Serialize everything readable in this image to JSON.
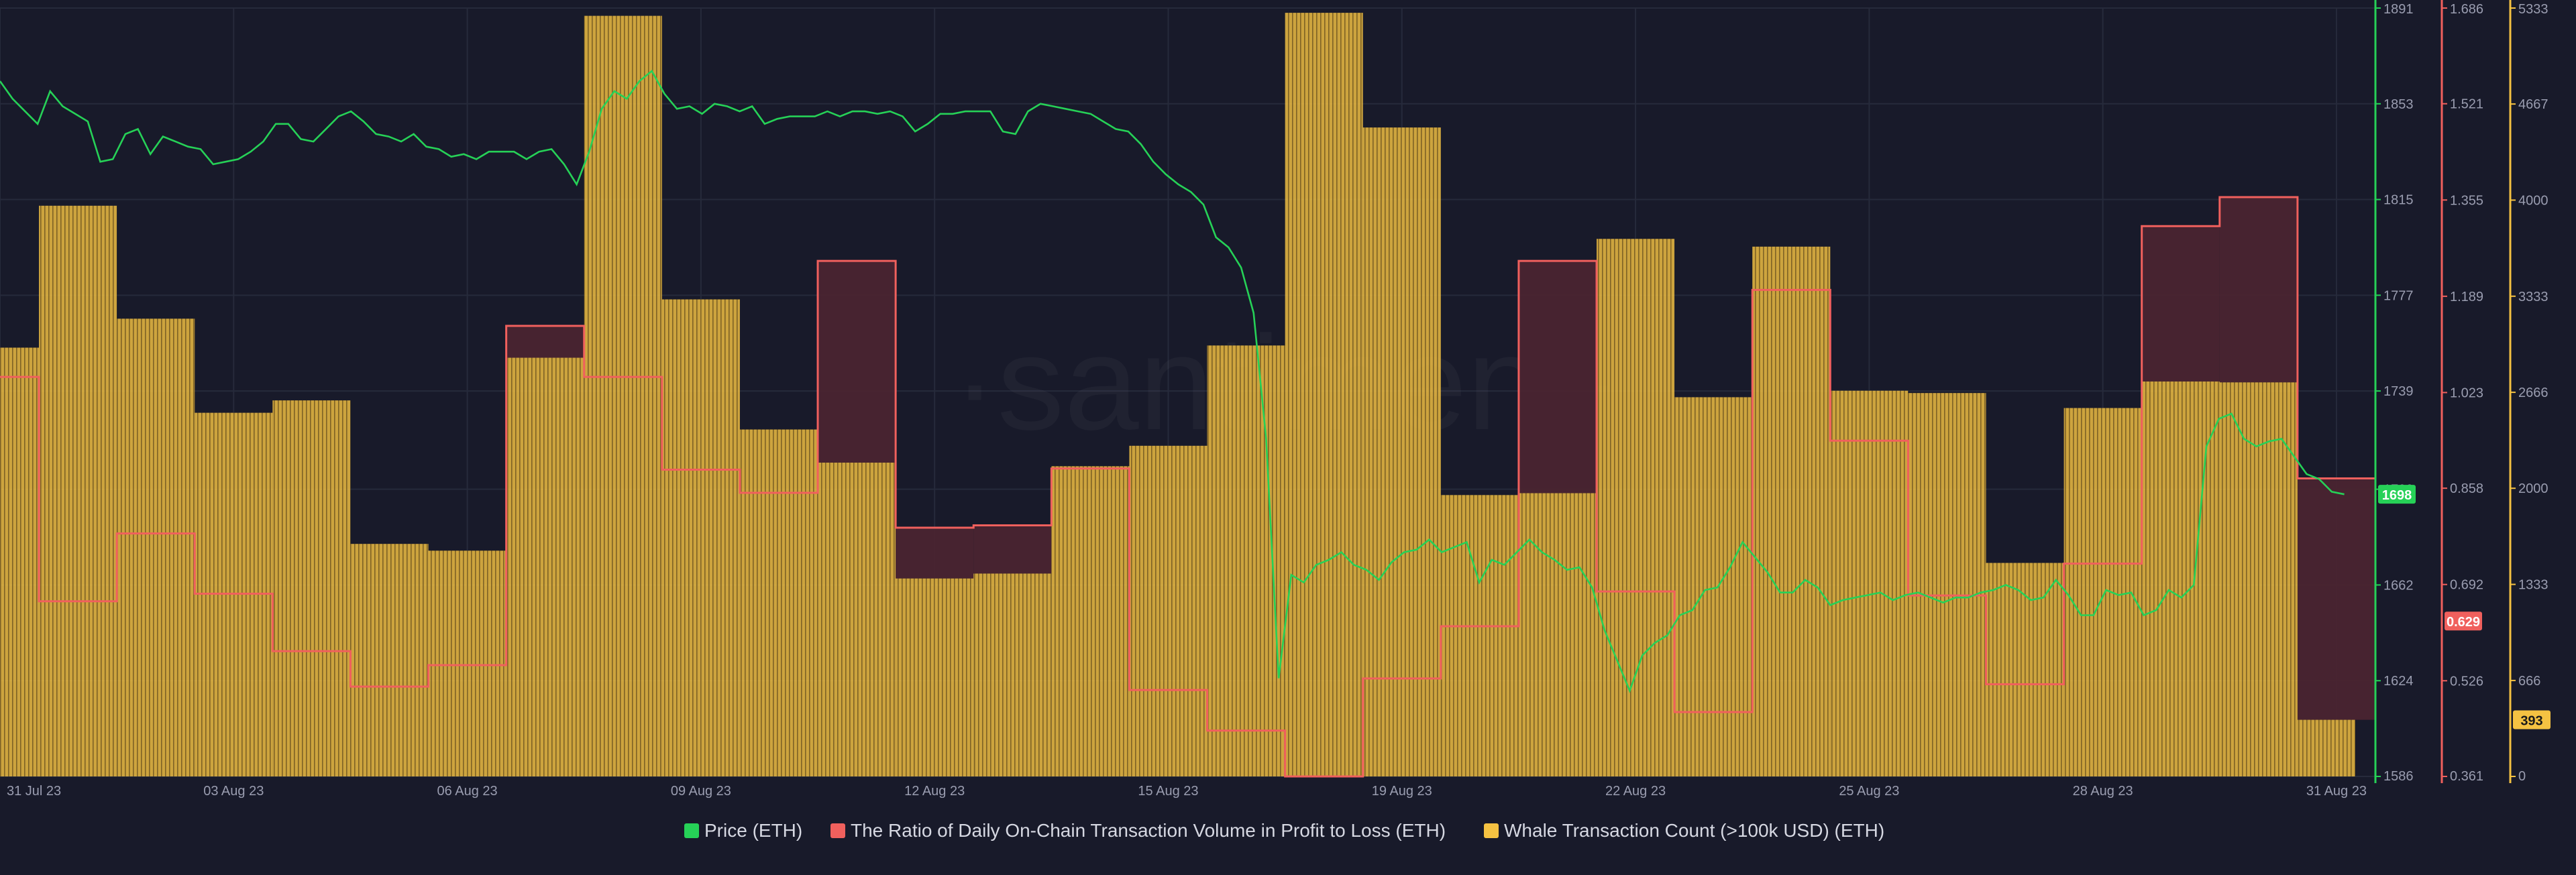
{
  "watermark": "·santiment·",
  "colors": {
    "background": "#181a2a",
    "price": "#26d157",
    "ratio": "#f0605d",
    "whale": "#f5c242",
    "ratio_fill": "#4a2430",
    "grid": "#262a3b"
  },
  "legend": [
    {
      "label": "Price (ETH)",
      "color": "#26d157"
    },
    {
      "label": "The Ratio of Daily On-Chain Transaction Volume in Profit to Loss (ETH)",
      "color": "#f0605d"
    },
    {
      "label": "Whale Transaction Count (>100k USD) (ETH)",
      "color": "#f5c242"
    }
  ],
  "chart_data": {
    "type": "bar",
    "x_tick_labels": [
      "31 Jul 23",
      "03 Aug 23",
      "06 Aug 23",
      "09 Aug 23",
      "12 Aug 23",
      "15 Aug 23",
      "19 Aug 23",
      "22 Aug 23",
      "25 Aug 23",
      "28 Aug 23",
      "31 Aug 23"
    ],
    "x_tick_days": [
      0,
      3,
      6,
      9,
      12,
      15,
      18,
      21,
      24,
      27,
      30
    ],
    "x_range_days": [
      0,
      30.5
    ],
    "axes": {
      "price": {
        "ticks": [
          "1891",
          "1853",
          "1815",
          "1777",
          "1739",
          "1700",
          "1662",
          "1624",
          "1586"
        ],
        "range": [
          1586,
          1891
        ],
        "current_label": "1698",
        "current_value": 1698
      },
      "ratio": {
        "ticks": [
          "1.686",
          "1.521",
          "1.355",
          "1.189",
          "1.023",
          "0.858",
          "0.692",
          "0.526",
          "0.361"
        ],
        "range": [
          0.361,
          1.686
        ],
        "current_label": "0.629",
        "current_value": 0.629
      },
      "whale": {
        "ticks": [
          "5333",
          "4667",
          "4000",
          "3333",
          "2666",
          "2000",
          "1333",
          "666",
          "0"
        ],
        "range": [
          0,
          5333
        ],
        "current_label": "393",
        "current_value": 393
      }
    },
    "grid": true,
    "legend_position": "bottom-center",
    "whale_counts": [
      2976,
      3961,
      3177,
      2524,
      2610,
      1614,
      1567,
      2906,
      5279,
      3311,
      2408,
      2178,
      1374,
      1408,
      2153,
      2295,
      2991,
      5300,
      4504,
      1953,
      1966,
      3731,
      2632,
      3677,
      2677,
      2661,
      1482,
      2557,
      2741,
      2735,
      393
    ],
    "ratio_values": [
      1.05,
      0.663,
      0.78,
      0.676,
      0.577,
      0.516,
      0.553,
      1.138,
      1.05,
      0.89,
      0.85,
      1.25,
      0.79,
      0.794,
      0.892,
      0.51,
      0.44,
      0.361,
      0.53,
      0.62,
      1.25,
      0.68,
      0.472,
      1.2,
      0.94,
      0.673,
      0.52,
      0.728,
      1.31,
      1.36,
      0.875,
      0.629
    ],
    "price_values": [
      1862,
      1855,
      1850,
      1845,
      1858,
      1852,
      1849,
      1846,
      1830,
      1831,
      1841,
      1843,
      1833,
      1840,
      1838,
      1836,
      1835,
      1829,
      1830,
      1831,
      1834,
      1838,
      1845,
      1845,
      1839,
      1838,
      1843,
      1848,
      1850,
      1846,
      1841,
      1840,
      1838,
      1841,
      1836,
      1835,
      1832,
      1833,
      1831,
      1834,
      1834,
      1834,
      1831,
      1834,
      1835,
      1829,
      1821,
      1834,
      1851,
      1858,
      1855,
      1862,
      1866,
      1857,
      1851,
      1852,
      1849,
      1853,
      1852,
      1850,
      1852,
      1845,
      1847,
      1848,
      1848,
      1848,
      1850,
      1848,
      1850,
      1850,
      1849,
      1850,
      1848,
      1842,
      1845,
      1849,
      1849,
      1850,
      1850,
      1850,
      1842,
      1841,
      1850,
      1853,
      1852,
      1851,
      1850,
      1849,
      1846,
      1843,
      1842,
      1837,
      1830,
      1825,
      1821,
      1818,
      1813,
      1800,
      1796,
      1788,
      1770,
      1720,
      1625,
      1666,
      1663,
      1670,
      1672,
      1675,
      1670,
      1668,
      1664,
      1671,
      1675,
      1676,
      1680,
      1675,
      1677,
      1679,
      1663,
      1672,
      1670,
      1675,
      1680,
      1675,
      1672,
      1668,
      1669,
      1661,
      1644,
      1632,
      1620,
      1634,
      1639,
      1642,
      1650,
      1652,
      1660,
      1661,
      1669,
      1679,
      1673,
      1667,
      1659,
      1659,
      1664,
      1661,
      1654,
      1656,
      1657,
      1658,
      1659,
      1656,
      1658,
      1659,
      1657,
      1655,
      1657,
      1657,
      1659,
      1660,
      1662,
      1660,
      1656,
      1657,
      1664,
      1658,
      1650,
      1650,
      1660,
      1658,
      1659,
      1650,
      1652,
      1660,
      1657,
      1662,
      1717,
      1728,
      1730,
      1720,
      1717,
      1719,
      1720,
      1713,
      1706,
      1704,
      1699,
      1698
    ]
  }
}
